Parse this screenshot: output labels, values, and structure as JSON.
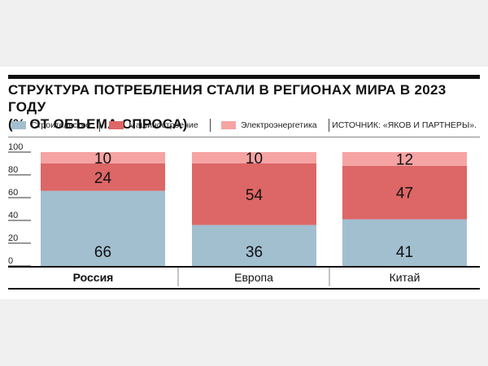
{
  "title_line1": "СТРУКТУРА ПОТРЕБЛЕНИЯ СТАЛИ В РЕГИОНАХ МИРА В 2023 ГОДУ",
  "title_line2": "(% ОТ ОБЪЕМА СПРОСА)",
  "legend": [
    {
      "label": "Строительство",
      "color": "#a2bfd0"
    },
    {
      "label": "Машиностроение",
      "color": "#dd6666"
    },
    {
      "label": "Электроэнергетика",
      "color": "#f6a3a3"
    }
  ],
  "source": "ИСТОЧНИК: «ЯКОВ И ПАРТНЕРЫ».",
  "chart_data": {
    "type": "bar",
    "stacked": true,
    "categories": [
      "Россия",
      "Европа",
      "Китай"
    ],
    "series": [
      {
        "name": "Строительство",
        "values": [
          66,
          36,
          41
        ],
        "color": "#a2bfd0"
      },
      {
        "name": "Машиностроение",
        "values": [
          24,
          54,
          47
        ],
        "color": "#dd6666"
      },
      {
        "name": "Электроэнергетика",
        "values": [
          10,
          10,
          12
        ],
        "color": "#f6a3a3"
      }
    ],
    "yticks": [
      0,
      20,
      40,
      60,
      80,
      100
    ],
    "ylim": [
      0,
      100
    ],
    "bold_category": "Россия"
  }
}
